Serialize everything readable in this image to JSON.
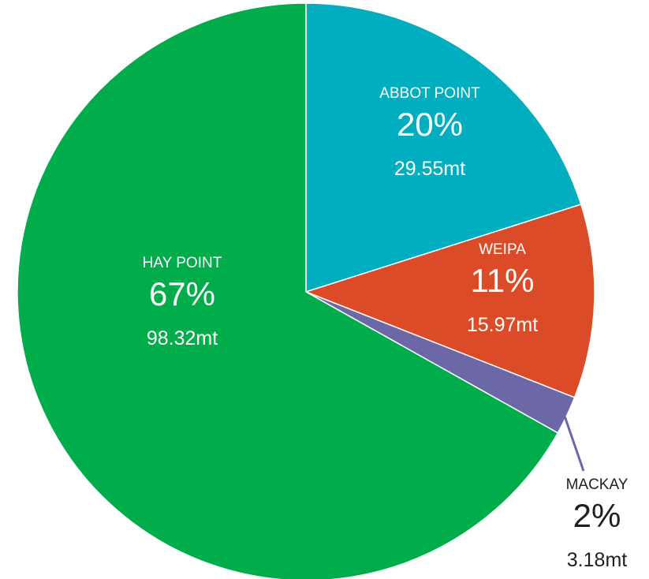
{
  "chart_data": {
    "type": "pie",
    "title": "",
    "start_angle_deg": 0,
    "direction": "clockwise",
    "label_placement": "inside, except MACKAY outside bottom-right with leader line",
    "slices": [
      {
        "label": "ABBOT POINT",
        "percent_label": "20%",
        "value": 29.55,
        "value_label": "29.55mt",
        "color": "#00AEBF",
        "text_color": "#ffffff"
      },
      {
        "label": "WEIPA",
        "percent_label": "11%",
        "value": 15.97,
        "value_label": "15.97mt",
        "color": "#DC4B27",
        "text_color": "#ffffff"
      },
      {
        "label": "MACKAY",
        "percent_label": "2%",
        "value": 3.18,
        "value_label": "3.18mt",
        "color": "#6C68A8",
        "text_color": "#1f1f1f"
      },
      {
        "label": "HAY POINT",
        "percent_label": "67%",
        "value": 98.32,
        "value_label": "98.32mt",
        "color": "#00AD4A",
        "text_color": "#ffffff"
      }
    ]
  }
}
